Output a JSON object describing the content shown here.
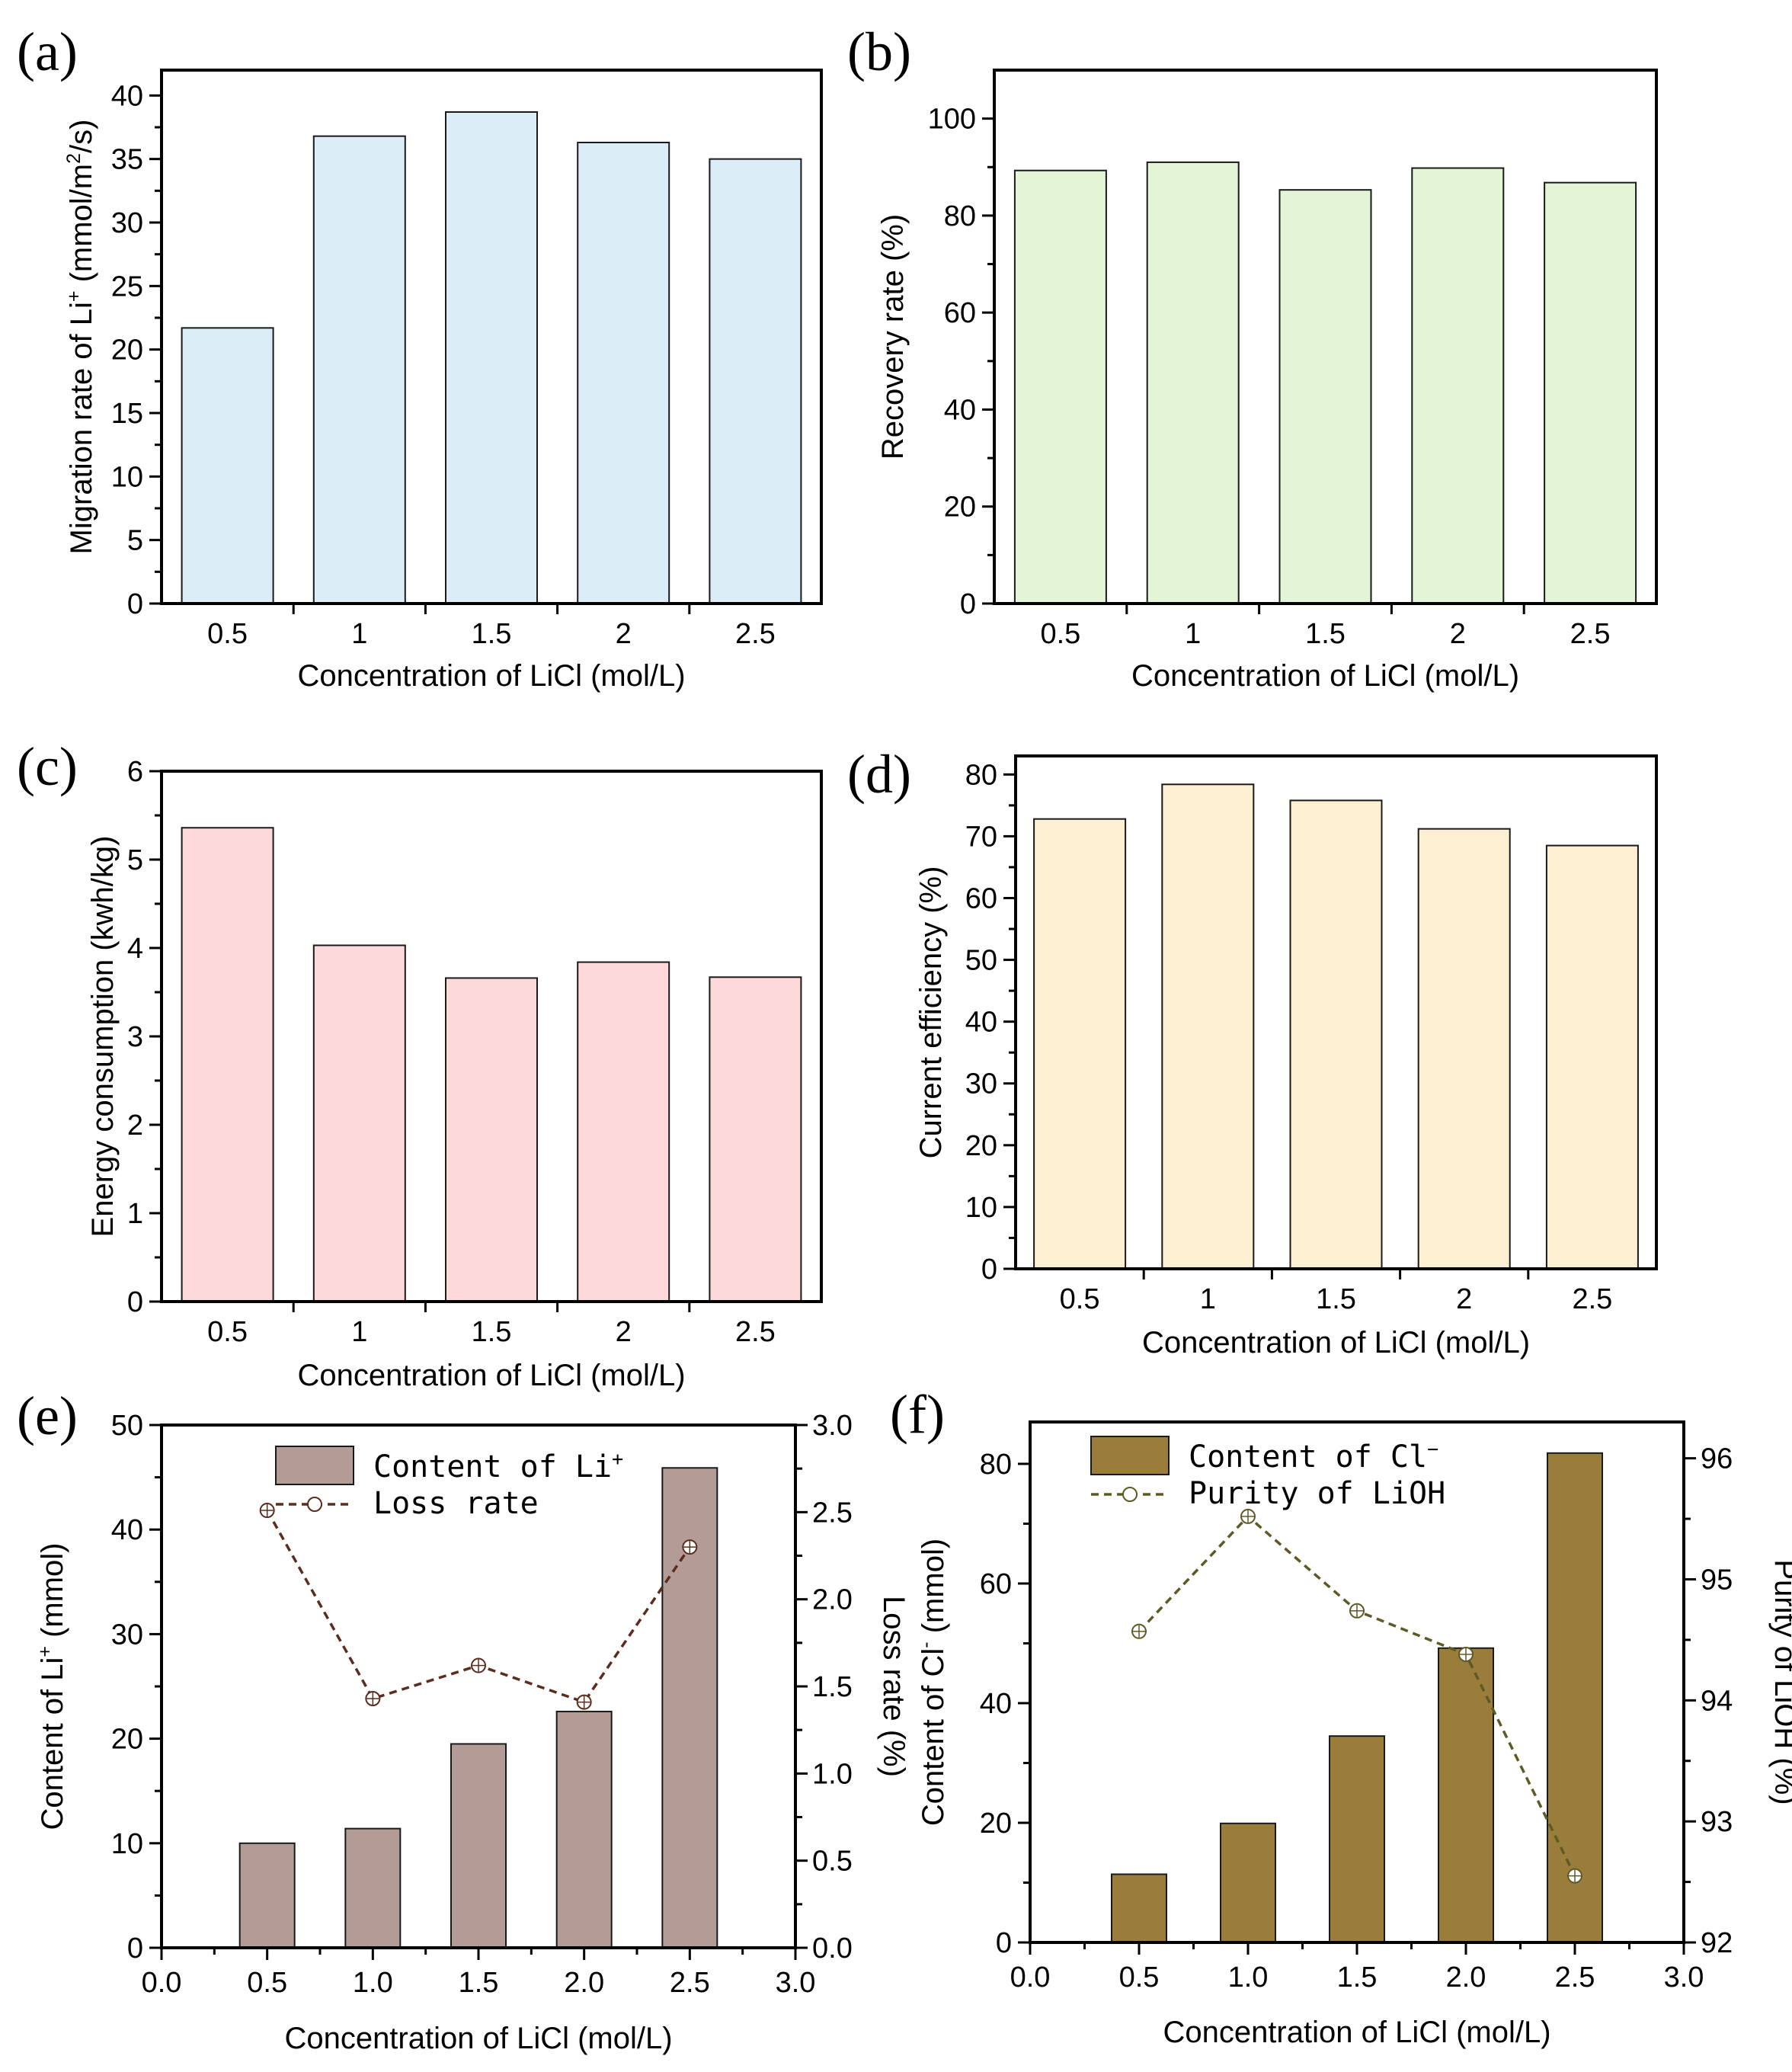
{
  "figure": {
    "panels": [
      {
        "id": "a",
        "letter": "(a)",
        "chart_data": {
          "type": "bar",
          "categories": [
            "0.5",
            "1",
            "1.5",
            "2",
            "2.5"
          ],
          "values": [
            21.7,
            36.8,
            38.7,
            36.3,
            35.0
          ],
          "xlabel": "Concentration of LiCl (mol/L)",
          "ylabel_parts": [
            "Migration rate of Li",
            "+",
            " (mmol/m",
            "2",
            "/s)"
          ],
          "ylim": [
            0,
            42
          ],
          "yticks": [
            "0",
            "5",
            "10",
            "15",
            "20",
            "25",
            "30",
            "35",
            "40"
          ],
          "bar_color": "#dbeef8"
        }
      },
      {
        "id": "b",
        "letter": "(b)",
        "chart_data": {
          "type": "bar",
          "categories": [
            "0.5",
            "1",
            "1.5",
            "2",
            "2.5"
          ],
          "values": [
            89.3,
            91.0,
            85.3,
            89.8,
            86.8
          ],
          "xlabel": "Concentration of LiCl (mol/L)",
          "ylabel_parts": [
            "Recovery rate (%)"
          ],
          "ylim": [
            0,
            110
          ],
          "yticks": [
            "0",
            "20",
            "40",
            "60",
            "80",
            "100"
          ],
          "bar_color": "#e3f5d6"
        }
      },
      {
        "id": "c",
        "letter": "(c)",
        "chart_data": {
          "type": "bar",
          "categories": [
            "0.5",
            "1",
            "1.5",
            "2",
            "2.5"
          ],
          "values": [
            5.36,
            4.03,
            3.66,
            3.84,
            3.67
          ],
          "xlabel": "Concentration of LiCl (mol/L)",
          "ylabel_parts": [
            "Energy consumption (kwh/kg)"
          ],
          "ylim": [
            0,
            6
          ],
          "yticks": [
            "0",
            "1",
            "2",
            "3",
            "4",
            "5",
            "6"
          ],
          "bar_color": "#fdd9db"
        }
      },
      {
        "id": "d",
        "letter": "(d)",
        "chart_data": {
          "type": "bar",
          "categories": [
            "0.5",
            "1",
            "1.5",
            "2",
            "2.5"
          ],
          "values": [
            72.8,
            78.4,
            75.8,
            71.2,
            68.5
          ],
          "xlabel": "Concentration of LiCl (mol/L)",
          "ylabel_parts": [
            "Current efficiency (%)"
          ],
          "ylim": [
            0,
            83
          ],
          "yticks": [
            "0",
            "10",
            "20",
            "30",
            "40",
            "50",
            "60",
            "70",
            "80"
          ],
          "bar_color": "#fdefd2"
        }
      },
      {
        "id": "e",
        "letter": "(e)",
        "chart_data": {
          "type": "bar+line",
          "x": [
            0.5,
            1.0,
            1.5,
            2.0,
            2.5
          ],
          "xlabel": "Concentration of LiCl (mol/L)",
          "xlim": [
            0,
            3.0
          ],
          "xticks": [
            "0.0",
            "0.5",
            "1.0",
            "1.5",
            "2.0",
            "2.5",
            "3.0"
          ],
          "bar_series": {
            "name_parts": [
              "Content of Li",
              "+"
            ],
            "values": [
              10.0,
              11.4,
              19.5,
              22.6,
              45.9
            ],
            "color": "#b39c95"
          },
          "line_series": {
            "name": "Loss rate",
            "values": [
              2.51,
              1.43,
              1.62,
              1.41,
              2.3
            ],
            "color": "#5a2d1e"
          },
          "ylabel_parts": [
            "Content of Li",
            "+",
            " (mmol)"
          ],
          "ylim": [
            0,
            50
          ],
          "yticks": [
            "0",
            "10",
            "20",
            "30",
            "40",
            "50"
          ],
          "y2label": "Loss rate (%)",
          "y2lim": [
            0,
            3.0
          ],
          "y2ticks": [
            "0.0",
            "0.5",
            "1.0",
            "1.5",
            "2.0",
            "2.5",
            "3.0"
          ]
        }
      },
      {
        "id": "f",
        "letter": "(f)",
        "chart_data": {
          "type": "bar+line",
          "x": [
            0.5,
            1.0,
            1.5,
            2.0,
            2.5
          ],
          "xlabel": "Concentration of LiCl (mol/L)",
          "xlim": [
            0,
            3.0
          ],
          "xticks": [
            "0.0",
            "0.5",
            "1.0",
            "1.5",
            "2.0",
            "2.5",
            "3.0"
          ],
          "bar_series": {
            "name_parts": [
              "Content of Cl",
              "−"
            ],
            "values": [
              11.4,
              19.9,
              34.5,
              49.2,
              81.8
            ],
            "color": "#9a7d3a"
          },
          "line_series": {
            "name": "Purity of LiOH",
            "values": [
              94.57,
              95.52,
              94.74,
              94.38,
              92.55
            ],
            "color": "#5e5a25"
          },
          "ylabel_parts": [
            "Content of Cl",
            "-",
            " (mmol)"
          ],
          "ylim": [
            0,
            87
          ],
          "yticks": [
            "0",
            "20",
            "40",
            "60",
            "80"
          ],
          "y2label": "Purity of LiOH (%)",
          "y2lim": [
            92,
            96.3
          ],
          "y2ticks": [
            "92",
            "93",
            "94",
            "95",
            "96"
          ]
        }
      }
    ]
  }
}
